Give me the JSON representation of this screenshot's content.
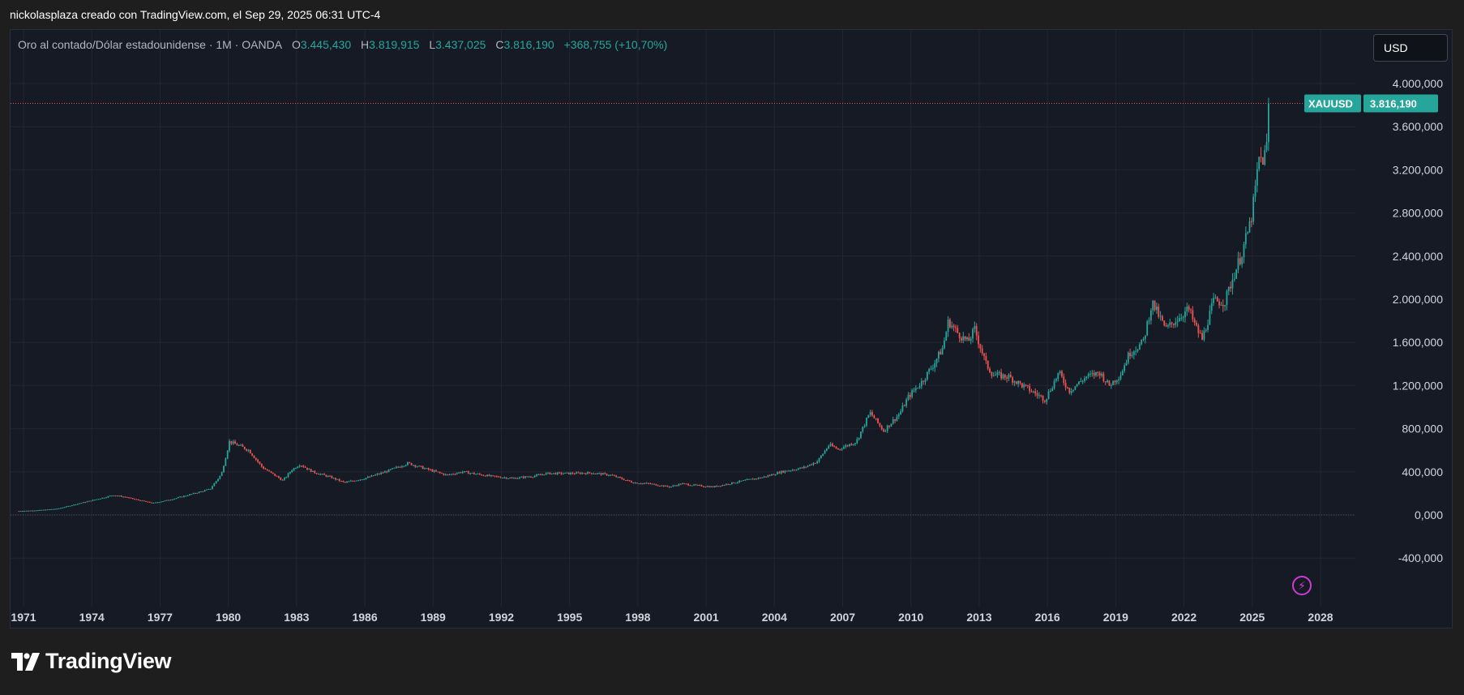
{
  "attribution": "nickolasplaza creado con TradingView.com, el Sep 29, 2025 06:31 UTC-4",
  "legend": {
    "symbol": "Oro al contado/Dólar estadounidense · 1M · OANDA",
    "o_label": "O",
    "o_value": "3.445,430",
    "h_label": "H",
    "h_value": "3.819,915",
    "l_label": "L",
    "l_value": "3.437,025",
    "c_label": "C",
    "c_value": "3.816,190",
    "change": "+368,755 (+10,70%)"
  },
  "currency_button": "USD",
  "price_tag": {
    "ticker": "XAUUSD",
    "value": "3.816,190"
  },
  "logo_text": "TradingView",
  "colors": {
    "up": "#26a69a",
    "down": "#ef5350",
    "background": "#161a25",
    "grid": "#232632",
    "price_line": "#ef5350"
  },
  "chart_data": {
    "type": "candlestick",
    "interval": "1M",
    "grid": true,
    "ylim": [
      -600,
      4300
    ],
    "yticks": [
      -400,
      0,
      400,
      800,
      1200,
      1600,
      2000,
      2400,
      2800,
      3200,
      3600,
      4000
    ],
    "ytick_labels": [
      "-400,000",
      "0,000",
      "400,000",
      "800,000",
      "1.200,000",
      "1.600,000",
      "2.000,000",
      "2.400,000",
      "2.800,000",
      "3.200,000",
      "3.600,000",
      "4.000,000"
    ],
    "xlim": [
      1970.8,
      2029.2
    ],
    "xticks": [
      1971,
      1974,
      1977,
      1980,
      1983,
      1986,
      1989,
      1992,
      1995,
      1998,
      2001,
      2004,
      2007,
      2010,
      2013,
      2016,
      2019,
      2022,
      2025,
      2028
    ],
    "xtick_labels": [
      "1971",
      "1974",
      "1977",
      "1980",
      "1983",
      "1986",
      "1989",
      "1992",
      "1995",
      "1998",
      "2001",
      "2004",
      "2007",
      "2010",
      "2013",
      "2016",
      "2019",
      "2022",
      "2025",
      "2028"
    ],
    "last_price": 3816.19,
    "series": [
      {
        "name": "XAUUSD",
        "points": [
          [
            1970.8,
            37
          ],
          [
            1971.5,
            42
          ],
          [
            1972.5,
            58
          ],
          [
            1973.5,
            110
          ],
          [
            1974.5,
            160
          ],
          [
            1974.95,
            185
          ],
          [
            1975.5,
            165
          ],
          [
            1976.0,
            140
          ],
          [
            1976.7,
            110
          ],
          [
            1977.5,
            145
          ],
          [
            1978.5,
            200
          ],
          [
            1979.2,
            240
          ],
          [
            1979.7,
            380
          ],
          [
            1980.05,
            680
          ],
          [
            1980.5,
            640
          ],
          [
            1980.9,
            600
          ],
          [
            1981.5,
            440
          ],
          [
            1982.4,
            320
          ],
          [
            1982.8,
            420
          ],
          [
            1983.15,
            470
          ],
          [
            1983.7,
            400
          ],
          [
            1984.5,
            350
          ],
          [
            1985.1,
            300
          ],
          [
            1986.0,
            340
          ],
          [
            1986.9,
            400
          ],
          [
            1987.9,
            480
          ],
          [
            1988.8,
            420
          ],
          [
            1989.6,
            370
          ],
          [
            1990.3,
            400
          ],
          [
            1991.5,
            360
          ],
          [
            1992.5,
            340
          ],
          [
            1993.4,
            360
          ],
          [
            1994.0,
            385
          ],
          [
            1995.0,
            385
          ],
          [
            1996.0,
            390
          ],
          [
            1996.8,
            370
          ],
          [
            1997.8,
            300
          ],
          [
            1998.5,
            290
          ],
          [
            1999.4,
            260
          ],
          [
            1999.9,
            290
          ],
          [
            2000.5,
            275
          ],
          [
            2001.3,
            260
          ],
          [
            2002.0,
            290
          ],
          [
            2002.7,
            320
          ],
          [
            2003.5,
            350
          ],
          [
            2004.3,
            400
          ],
          [
            2005.3,
            440
          ],
          [
            2005.9,
            500
          ],
          [
            2006.4,
            650
          ],
          [
            2006.8,
            610
          ],
          [
            2007.6,
            680
          ],
          [
            2008.2,
            950
          ],
          [
            2008.8,
            780
          ],
          [
            2009.5,
            940
          ],
          [
            2009.9,
            1100
          ],
          [
            2010.5,
            1240
          ],
          [
            2011.0,
            1400
          ],
          [
            2011.4,
            1550
          ],
          [
            2011.65,
            1800
          ],
          [
            2012.0,
            1700
          ],
          [
            2012.5,
            1600
          ],
          [
            2012.8,
            1720
          ],
          [
            2013.3,
            1400
          ],
          [
            2013.6,
            1300
          ],
          [
            2014.3,
            1280
          ],
          [
            2014.9,
            1200
          ],
          [
            2015.9,
            1070
          ],
          [
            2016.5,
            1320
          ],
          [
            2016.95,
            1150
          ],
          [
            2017.7,
            1280
          ],
          [
            2018.3,
            1320
          ],
          [
            2018.7,
            1200
          ],
          [
            2019.2,
            1300
          ],
          [
            2019.6,
            1500
          ],
          [
            2020.2,
            1600
          ],
          [
            2020.6,
            1970
          ],
          [
            2021.2,
            1720
          ],
          [
            2021.6,
            1800
          ],
          [
            2022.2,
            1910
          ],
          [
            2022.5,
            1750
          ],
          [
            2022.8,
            1630
          ],
          [
            2023.3,
            1980
          ],
          [
            2023.8,
            1980
          ],
          [
            2024.2,
            2230
          ],
          [
            2024.5,
            2400
          ],
          [
            2024.85,
            2650
          ],
          [
            2025.0,
            2800
          ],
          [
            2025.3,
            3300
          ],
          [
            2025.5,
            3300
          ],
          [
            2025.67,
            3450
          ],
          [
            2025.75,
            3816
          ]
        ]
      }
    ]
  }
}
